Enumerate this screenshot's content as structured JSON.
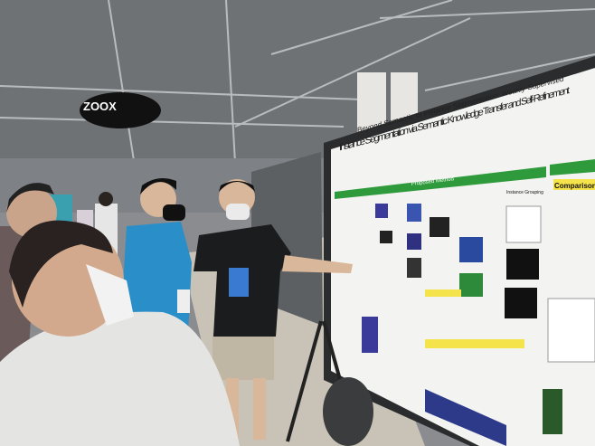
{
  "scene": {
    "banner": "ZOOX",
    "poster": {
      "title_line1": "Beyond Semantic to Instance Segmentation: Weakly-Supervised",
      "title_line2": "Instance Segmentation via Semantic Knowledge Transfer and Self-Refinement",
      "section_method": "Proposed Method",
      "section_comparison": "Comparison",
      "instance_grouping": "Instance Grouping"
    },
    "colors": {
      "ceiling": "#6f7275",
      "floor": "#c9c2b6",
      "poster_green": "#2f9a3c",
      "poster_bg": "#f3f4f2",
      "board_frame": "#2a2c2e",
      "shirt_blue": "#2a8fc8",
      "shirt_black": "#1b1c1e"
    }
  }
}
